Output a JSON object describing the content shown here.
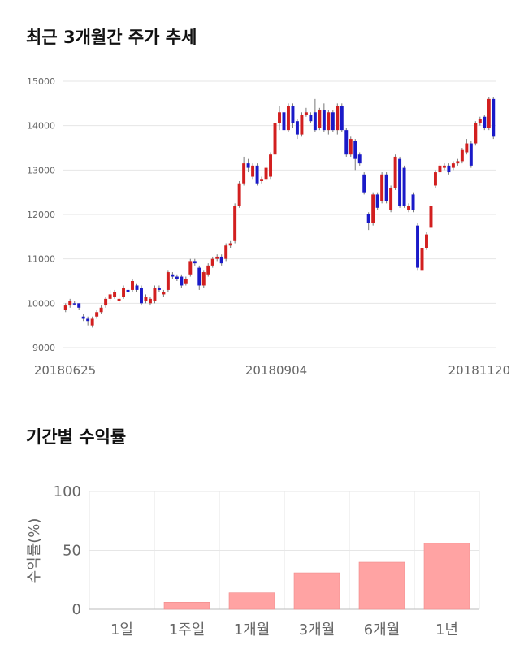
{
  "sections": {
    "price_title": "최근 3개월간 주가 추세",
    "return_title": "기간별 수익률"
  },
  "colors": {
    "up": "#d21f1f",
    "down": "#1a1ac8",
    "bar": "#ffa3a3",
    "grid": "#e6e6e6"
  },
  "chart_data": [
    {
      "type": "candlestick",
      "title": "최근 3개월간 주가 추세",
      "y_ticks": [
        9000,
        10000,
        11000,
        12000,
        13000,
        14000,
        15000
      ],
      "ylim": [
        9000,
        15000
      ],
      "x_ticks": [
        "20180625",
        "20180904",
        "20181120"
      ],
      "grid": "horizontal",
      "candles": [
        [
          9850,
          9950,
          9800,
          10000
        ],
        [
          9950,
          10050,
          9900,
          10100
        ],
        [
          10000,
          9980,
          9950,
          10050
        ],
        [
          10000,
          9900,
          9850,
          10000
        ],
        [
          9700,
          9650,
          9600,
          9750
        ],
        [
          9650,
          9600,
          9500,
          9700
        ],
        [
          9500,
          9650,
          9450,
          9700
        ],
        [
          9700,
          9800,
          9650,
          9850
        ],
        [
          9800,
          9900,
          9750,
          9950
        ],
        [
          9950,
          10100,
          9900,
          10150
        ],
        [
          10100,
          10200,
          10050,
          10300
        ],
        [
          10150,
          10250,
          10100,
          10300
        ],
        [
          10050,
          10100,
          10000,
          10200
        ],
        [
          10150,
          10350,
          10100,
          10400
        ],
        [
          10300,
          10250,
          10200,
          10350
        ],
        [
          10300,
          10500,
          10250,
          10550
        ],
        [
          10400,
          10300,
          10250,
          10450
        ],
        [
          10350,
          10000,
          9950,
          10400
        ],
        [
          10050,
          10150,
          10000,
          10200
        ],
        [
          10000,
          10100,
          9950,
          10150
        ],
        [
          10050,
          10350,
          10000,
          10400
        ],
        [
          10350,
          10300,
          10250,
          10400
        ],
        [
          10200,
          10250,
          10150,
          10300
        ],
        [
          10300,
          10700,
          10250,
          10750
        ],
        [
          10650,
          10600,
          10550,
          10700
        ],
        [
          10600,
          10550,
          10500,
          10650
        ],
        [
          10600,
          10400,
          10350,
          10650
        ],
        [
          10450,
          10550,
          10400,
          10600
        ],
        [
          10650,
          10950,
          10600,
          11000
        ],
        [
          10950,
          10900,
          10850,
          11000
        ],
        [
          10800,
          10400,
          10300,
          10850
        ],
        [
          10400,
          10700,
          10350,
          10750
        ],
        [
          10650,
          10850,
          10600,
          10900
        ],
        [
          10850,
          11000,
          10800,
          11050
        ],
        [
          11000,
          11050,
          10950,
          11100
        ],
        [
          11050,
          10900,
          10850,
          11100
        ],
        [
          11000,
          11300,
          10950,
          11350
        ],
        [
          11300,
          11350,
          11250,
          11400
        ],
        [
          11400,
          12200,
          11350,
          12250
        ],
        [
          12200,
          12700,
          12150,
          12750
        ],
        [
          12700,
          13150,
          12650,
          13300
        ],
        [
          13150,
          13050,
          12950,
          13250
        ],
        [
          12850,
          13100,
          12800,
          13150
        ],
        [
          13100,
          12700,
          12650,
          13150
        ],
        [
          12750,
          12800,
          12700,
          12850
        ],
        [
          12800,
          13050,
          12750,
          13100
        ],
        [
          12850,
          13350,
          12800,
          13400
        ],
        [
          13350,
          14050,
          13300,
          14200
        ],
        [
          14050,
          14300,
          13900,
          14450
        ],
        [
          14300,
          13900,
          13800,
          14350
        ],
        [
          13900,
          14450,
          13850,
          14500
        ],
        [
          14450,
          14050,
          13950,
          14500
        ],
        [
          14100,
          13800,
          13700,
          14150
        ],
        [
          13800,
          14250,
          13750,
          14300
        ],
        [
          14250,
          14300,
          14200,
          14400
        ],
        [
          14250,
          14100,
          14050,
          14300
        ],
        [
          14300,
          13900,
          13850,
          14600
        ],
        [
          13950,
          14350,
          13900,
          14400
        ],
        [
          14350,
          13900,
          13850,
          14500
        ],
        [
          13900,
          14300,
          13800,
          14350
        ],
        [
          14300,
          13900,
          13850,
          14350
        ],
        [
          13900,
          14450,
          13800,
          14500
        ],
        [
          14450,
          13900,
          13850,
          14500
        ],
        [
          13900,
          13350,
          13300,
          13950
        ],
        [
          13350,
          13700,
          13300,
          13750
        ],
        [
          13650,
          13250,
          13000,
          13700
        ],
        [
          13350,
          13150,
          13100,
          13400
        ],
        [
          12900,
          12500,
          12450,
          12950
        ],
        [
          12000,
          11800,
          11650,
          12050
        ],
        [
          11800,
          12450,
          11750,
          12500
        ],
        [
          12450,
          12150,
          12100,
          12500
        ],
        [
          12300,
          12900,
          12250,
          12950
        ],
        [
          12900,
          12300,
          12250,
          12950
        ],
        [
          12100,
          12600,
          12050,
          12650
        ],
        [
          12600,
          13300,
          12550,
          13350
        ],
        [
          13250,
          12200,
          12150,
          13300
        ],
        [
          13050,
          12200,
          12150,
          13100
        ],
        [
          12100,
          12200,
          12050,
          12250
        ],
        [
          12450,
          12100,
          12050,
          12500
        ],
        [
          11750,
          10800,
          10750,
          11800
        ],
        [
          10750,
          11250,
          10600,
          11300
        ],
        [
          11250,
          11550,
          11200,
          11600
        ],
        [
          11700,
          12200,
          11650,
          12250
        ],
        [
          12650,
          12950,
          12600,
          13000
        ],
        [
          12950,
          13100,
          12900,
          13150
        ],
        [
          13050,
          13100,
          13000,
          13150
        ],
        [
          13100,
          12950,
          12900,
          13150
        ],
        [
          13050,
          13150,
          13000,
          13200
        ],
        [
          13150,
          13200,
          13100,
          13250
        ],
        [
          13200,
          13450,
          13150,
          13500
        ],
        [
          13400,
          13600,
          13350,
          13700
        ],
        [
          13600,
          13100,
          13050,
          13650
        ],
        [
          13600,
          14050,
          13550,
          14100
        ],
        [
          14050,
          14150,
          14000,
          14200
        ],
        [
          14200,
          13950,
          13900,
          14250
        ],
        [
          13950,
          14600,
          13900,
          14650
        ],
        [
          14600,
          13750,
          13700,
          14650
        ]
      ]
    },
    {
      "type": "bar",
      "title": "기간별 수익률",
      "ylabel": "수익률(%)",
      "categories": [
        "1일",
        "1주일",
        "1개월",
        "3개월",
        "6개월",
        "1년"
      ],
      "values": [
        0,
        6,
        14,
        31,
        40,
        56
      ],
      "ylim": [
        0,
        100
      ],
      "y_ticks": [
        0,
        50,
        100
      ],
      "grid": "both"
    }
  ]
}
